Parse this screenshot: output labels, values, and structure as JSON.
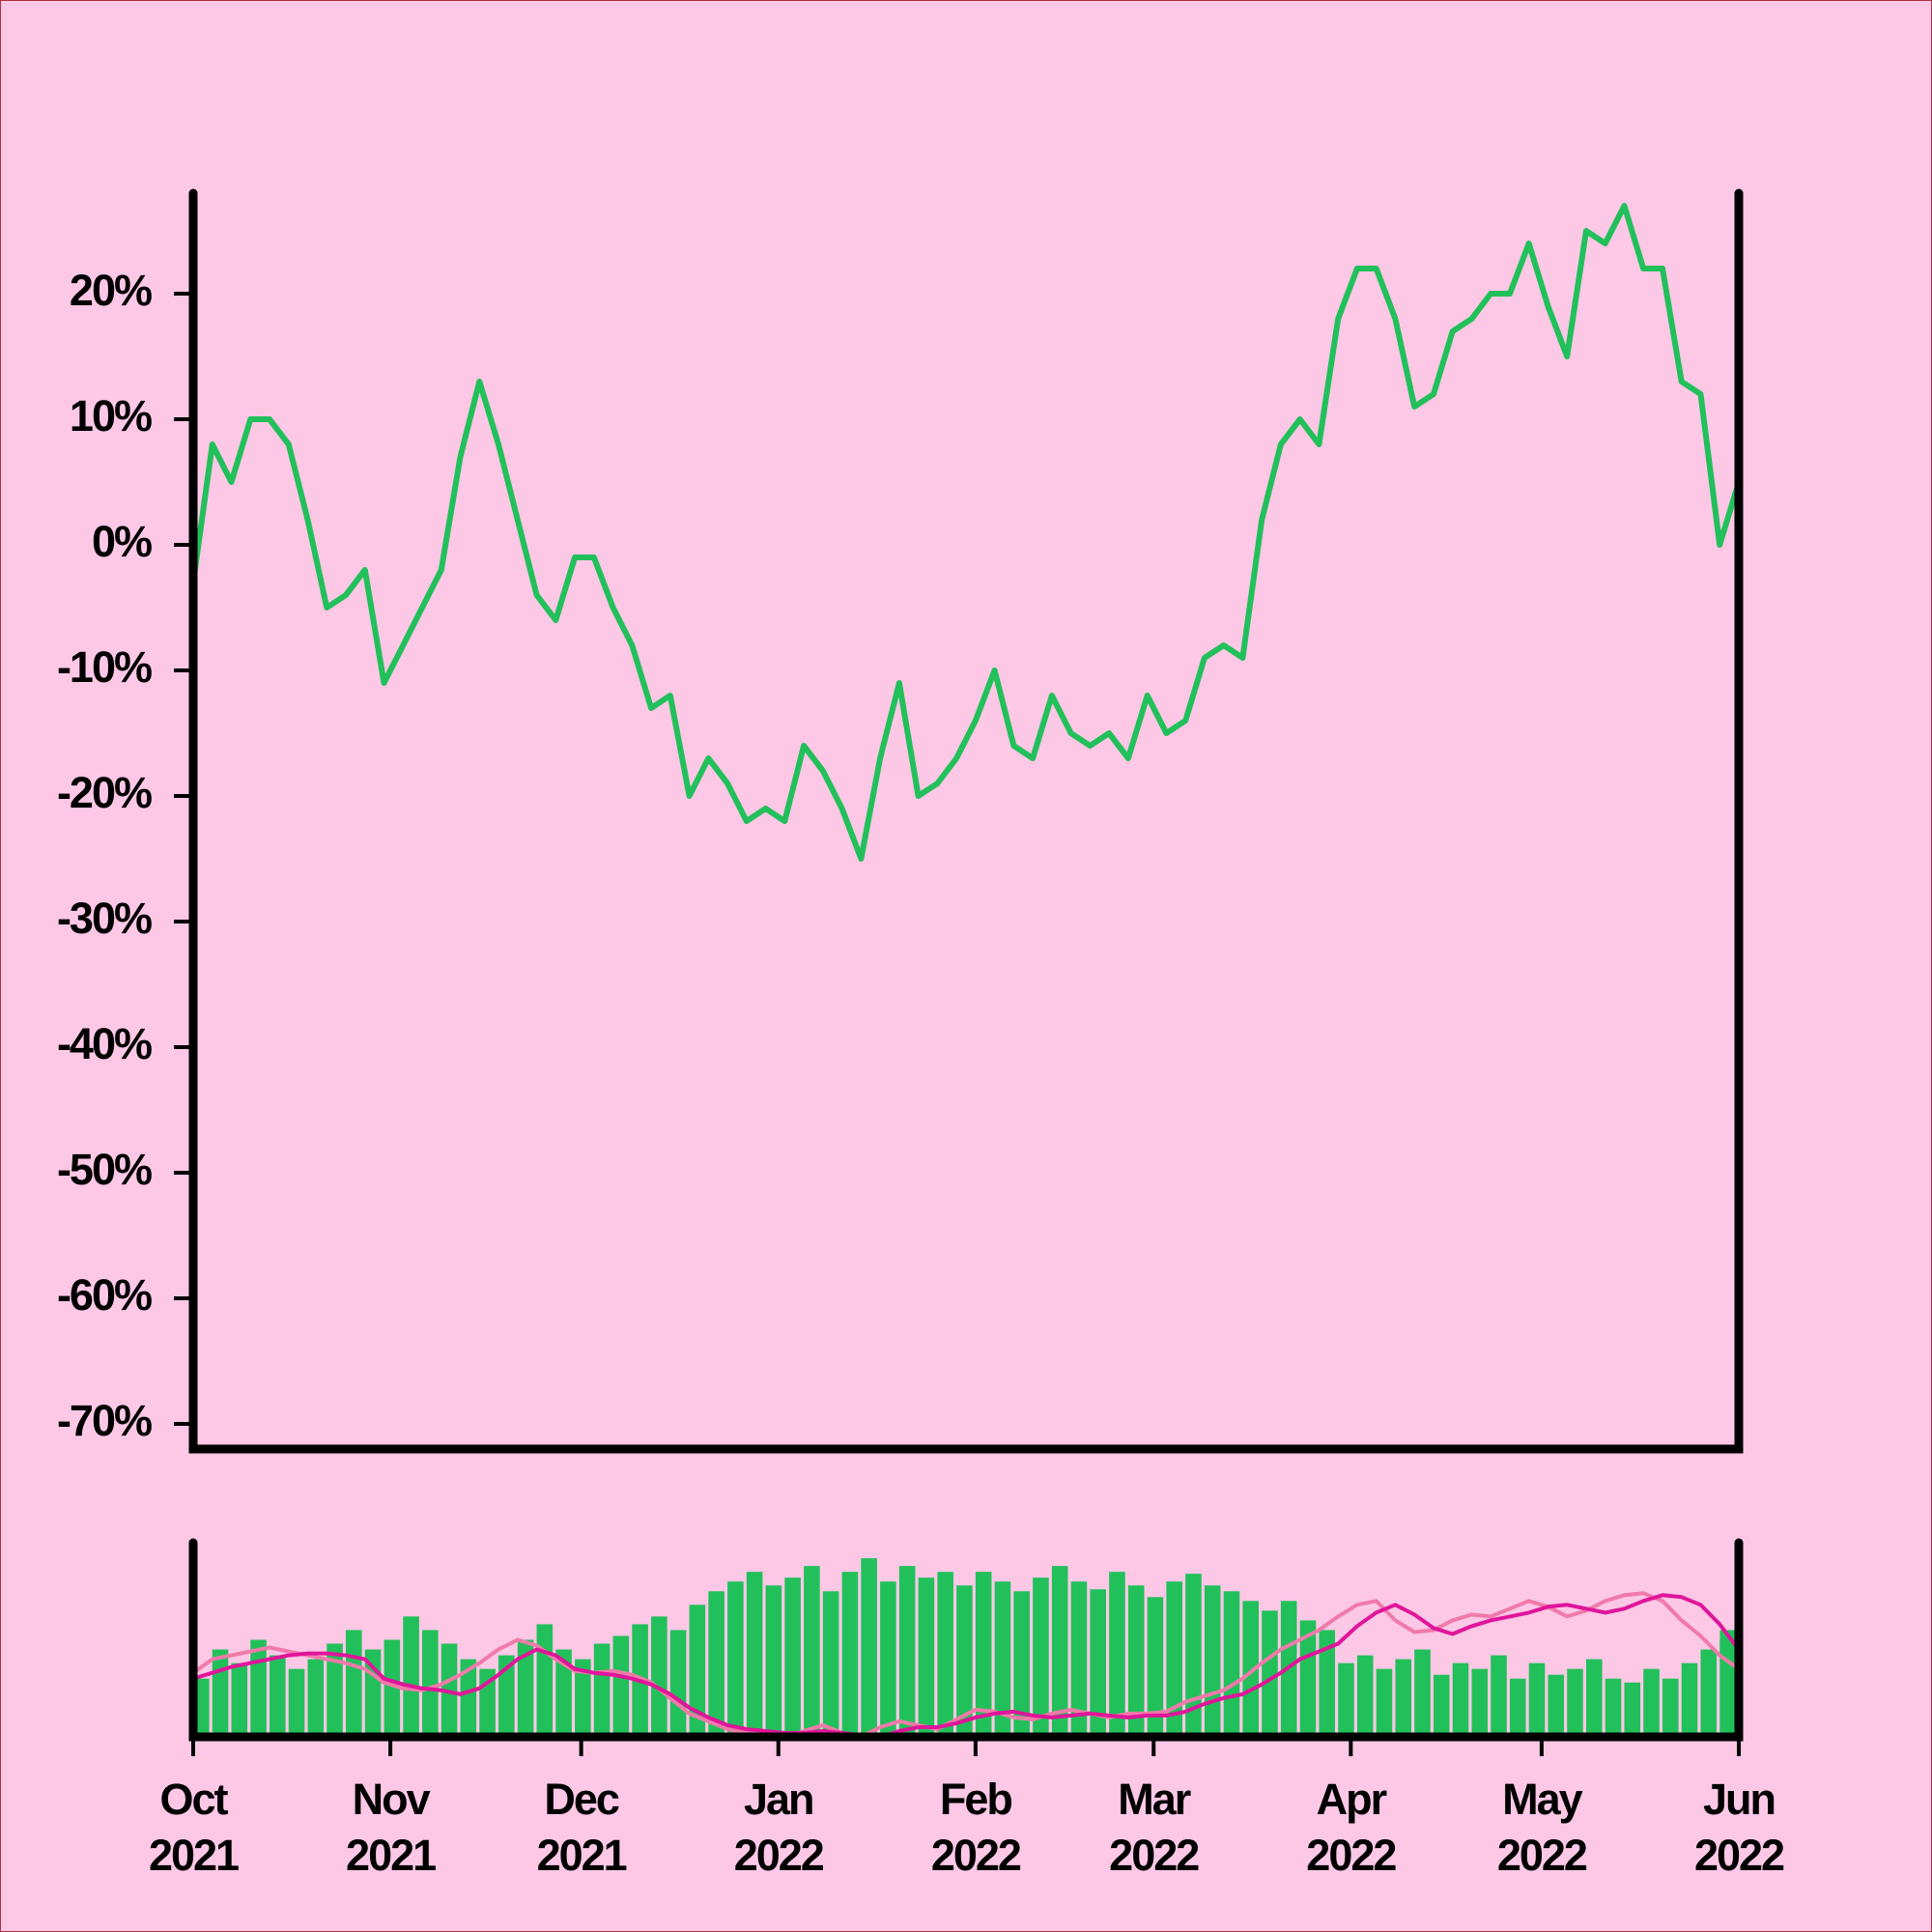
{
  "chart_data": [
    {
      "type": "line",
      "x": [
        0,
        3,
        6,
        9,
        12,
        15,
        18,
        21,
        24,
        27,
        30,
        33,
        36,
        39,
        42,
        45,
        48,
        51,
        54,
        57,
        60,
        63,
        66,
        69,
        72,
        75,
        78,
        81,
        84,
        87,
        90,
        93,
        96,
        99,
        102,
        105,
        108,
        111,
        114,
        117,
        120,
        123,
        126,
        129,
        132,
        135,
        138,
        141,
        144,
        147,
        150,
        153,
        156,
        159,
        162,
        165,
        168,
        171,
        174,
        177,
        180,
        183,
        186,
        189,
        192,
        195,
        198,
        201,
        204,
        207,
        210,
        213,
        216,
        219,
        222,
        225,
        228,
        231,
        234,
        237,
        240,
        243
      ],
      "series": [
        {
          "color": "#22c05a",
          "values": [
            -3,
            8,
            5,
            10,
            10,
            8,
            2,
            -5,
            -4,
            -2,
            -11,
            -8,
            -5,
            -2,
            7,
            13,
            8,
            2,
            -4,
            -6,
            -1,
            -1,
            -5,
            -8,
            -13,
            -12,
            -20,
            -17,
            -19,
            -22,
            -21,
            -22,
            -16,
            -18,
            -21,
            -25,
            -17,
            -11,
            -20,
            -19,
            -17,
            -14,
            -10,
            -16,
            -17,
            -12,
            -15,
            -16,
            -15,
            -17,
            -12,
            -15,
            -14,
            -9,
            -8,
            -9,
            2,
            8,
            10,
            8,
            18,
            22,
            22,
            18,
            11,
            12,
            17,
            18,
            20,
            20,
            24,
            19,
            15,
            25,
            24,
            27,
            22,
            22,
            13,
            12,
            0,
            5
          ]
        }
      ],
      "xlim": [
        0,
        243
      ],
      "ylim": [
        -72,
        28
      ],
      "yticks": [
        {
          "value": 20,
          "label": "20%"
        },
        {
          "value": 10,
          "label": "10%"
        },
        {
          "value": 0,
          "label": "0%"
        },
        {
          "value": -10,
          "label": "-10%"
        },
        {
          "value": -20,
          "label": "-20%"
        },
        {
          "value": -30,
          "label": "-30%"
        },
        {
          "value": -40,
          "label": "-40%"
        },
        {
          "value": -50,
          "label": "-50%"
        },
        {
          "value": -60,
          "label": "-60%"
        },
        {
          "value": -70,
          "label": "-70%"
        }
      ]
    },
    {
      "type": "bar",
      "x": [
        0,
        3,
        6,
        9,
        12,
        15,
        18,
        21,
        24,
        27,
        30,
        33,
        36,
        39,
        42,
        45,
        48,
        51,
        54,
        57,
        60,
        63,
        66,
        69,
        72,
        75,
        78,
        81,
        84,
        87,
        90,
        93,
        96,
        99,
        102,
        105,
        108,
        111,
        114,
        117,
        120,
        123,
        126,
        129,
        132,
        135,
        138,
        141,
        144,
        147,
        150,
        153,
        156,
        159,
        162,
        165,
        168,
        171,
        174,
        177,
        180,
        183,
        186,
        189,
        192,
        195,
        198,
        201,
        204,
        207,
        210,
        213,
        216,
        219,
        222,
        225,
        228,
        231,
        234,
        237,
        240,
        243
      ],
      "series": [
        {
          "type": "bar",
          "color": "#22c05a",
          "values": [
            30,
            45,
            38,
            50,
            42,
            35,
            40,
            48,
            55,
            45,
            50,
            62,
            55,
            48,
            40,
            35,
            42,
            50,
            58,
            45,
            40,
            48,
            52,
            58,
            62,
            55,
            68,
            75,
            80,
            85,
            78,
            82,
            88,
            75,
            85,
            92,
            80,
            88,
            82,
            85,
            78,
            85,
            80,
            75,
            82,
            88,
            80,
            76,
            85,
            78,
            72,
            80,
            84,
            78,
            75,
            70,
            65,
            70,
            60,
            55,
            38,
            42,
            35,
            40,
            45,
            32,
            38,
            35,
            42,
            30,
            38,
            32,
            35,
            40,
            30,
            28,
            35,
            30,
            38,
            45,
            50,
            55
          ]
        },
        {
          "type": "line",
          "color": "#f07aaa",
          "values": [
            33,
            40,
            42,
            44,
            46,
            44,
            42,
            40,
            38,
            35,
            28,
            25,
            24,
            27,
            32,
            38,
            45,
            50,
            47,
            40,
            34,
            33,
            34,
            32,
            28,
            20,
            12,
            8,
            4,
            2,
            1,
            0,
            3,
            6,
            2,
            0,
            5,
            8,
            6,
            4,
            9,
            14,
            13,
            10,
            9,
            12,
            14,
            12,
            10,
            12,
            12,
            13,
            18,
            21,
            24,
            30,
            38,
            45,
            50,
            55,
            62,
            68,
            70,
            60,
            54,
            55,
            60,
            63,
            62,
            66,
            70,
            67,
            62,
            65,
            70,
            73,
            74,
            70,
            60,
            52,
            42,
            35
          ]
        },
        {
          "type": "line",
          "color": "#e0159a",
          "values": [
            30,
            33,
            36,
            38,
            40,
            42,
            43,
            43,
            42,
            40,
            30,
            27,
            25,
            24,
            22,
            25,
            32,
            40,
            45,
            42,
            35,
            33,
            32,
            30,
            27,
            22,
            15,
            10,
            6,
            4,
            3,
            2,
            2,
            3,
            2,
            1,
            0,
            3,
            5,
            5,
            7,
            10,
            12,
            13,
            11,
            10,
            11,
            12,
            11,
            10,
            11,
            11,
            13,
            17,
            20,
            22,
            27,
            33,
            40,
            44,
            48,
            57,
            64,
            68,
            63,
            56,
            53,
            57,
            60,
            62,
            64,
            67,
            68,
            66,
            64,
            66,
            70,
            73,
            72,
            68,
            58,
            45
          ]
        }
      ],
      "xlim": [
        0,
        243
      ],
      "ylim": [
        0,
        100
      ],
      "xticks": [
        {
          "value": 0,
          "label": [
            "Oct",
            "2021"
          ]
        },
        {
          "value": 31,
          "label": [
            "Nov",
            "2021"
          ]
        },
        {
          "value": 61,
          "label": [
            "Dec",
            "2021"
          ]
        },
        {
          "value": 92,
          "label": [
            "Jan",
            "2022"
          ]
        },
        {
          "value": 123,
          "label": [
            "Feb",
            "2022"
          ]
        },
        {
          "value": 151,
          "label": [
            "Mar",
            "2022"
          ]
        },
        {
          "value": 182,
          "label": [
            "Apr",
            "2022"
          ]
        },
        {
          "value": 212,
          "label": [
            "May",
            "2022"
          ]
        },
        {
          "value": 243,
          "label": [
            "Jun",
            "2022"
          ]
        }
      ]
    }
  ]
}
